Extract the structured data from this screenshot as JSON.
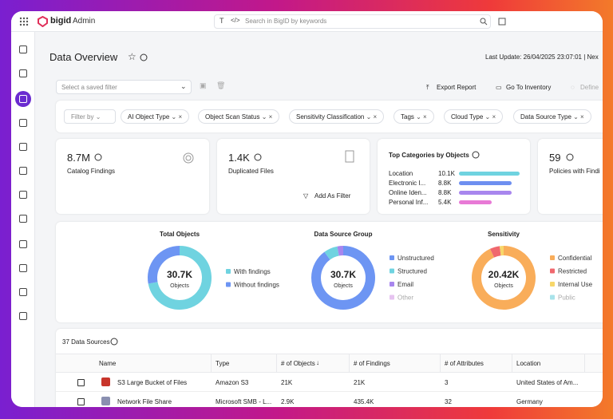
{
  "header": {
    "logo": "bigid",
    "product": "Admin",
    "search_placeholder": "Search in BigID by keywords"
  },
  "page": {
    "title": "Data Overview",
    "last_update": "Last Update: 26/04/2025 23:07:01 | Nex"
  },
  "toolbar": {
    "saved_filter_placeholder": "Select a saved filter",
    "actions": [
      "Export Report",
      "Go To Inventory",
      "Define"
    ]
  },
  "filters": {
    "label": "Filter by",
    "chips": [
      "AI Object Type",
      "Object Scan Status",
      "Sensitivity Classification",
      "Tags",
      "Cloud Type",
      "Data Source Type"
    ]
  },
  "kpis": [
    {
      "value": "8.7M",
      "label": "Catalog Findings"
    },
    {
      "value": "1.4K",
      "label": "Duplicated Files",
      "action": "Add As Filter"
    },
    {
      "value": "59",
      "label": "Policies with Findi"
    }
  ],
  "top_categories": {
    "title": "Top Categories by Objects",
    "items": [
      {
        "name": "Location",
        "label": "10.1K",
        "value": 10100,
        "color": "#6fd3e0"
      },
      {
        "name": "Electronic I...",
        "label": "8.8K",
        "value": 8800,
        "color": "#6e8ff0"
      },
      {
        "name": "Online Iden...",
        "label": "8.8K",
        "value": 8800,
        "color": "#a886ee"
      },
      {
        "name": "Personal Inf...",
        "label": "5.4K",
        "value": 5400,
        "color": "#e87ad6"
      }
    ]
  },
  "donuts": [
    {
      "title": "Total Objects",
      "total": "30.7K",
      "unit": "Objects",
      "segments": [
        {
          "name": "With findings",
          "value": 72,
          "color": "#6fd3e0"
        },
        {
          "name": "Without findings",
          "value": 28,
          "color": "#6d95f3"
        }
      ]
    },
    {
      "title": "Data Source Group",
      "total": "30.7K",
      "unit": "Objects",
      "segments": [
        {
          "name": "Unstructured",
          "value": 90,
          "color": "#6d95f3"
        },
        {
          "name": "Structured",
          "value": 7,
          "color": "#6fd3e0"
        },
        {
          "name": "Email",
          "value": 3,
          "color": "#a886ee"
        },
        {
          "name": "Other",
          "value": 0,
          "color": "#e6c3f0"
        }
      ]
    },
    {
      "title": "Sensitivity",
      "total": "20.42K",
      "unit": "Objects",
      "segments": [
        {
          "name": "Confidential",
          "value": 93,
          "color": "#f9ad5a"
        },
        {
          "name": "Restricted",
          "value": 5,
          "color": "#f0686e"
        },
        {
          "name": "Internal Use",
          "value": 2,
          "color": "#f7d76a"
        },
        {
          "name": "Public",
          "value": 0,
          "color": "#a8e3ea"
        }
      ]
    }
  ],
  "table": {
    "count": "37 Data Sources",
    "columns": [
      "Name",
      "Type",
      "# of Objects",
      "# of Findings",
      "# of Attributes",
      "Location"
    ],
    "rows": [
      [
        "S3 Large Bucket of Files",
        "Amazon S3",
        "21K",
        "21K",
        "3",
        "United States of Am..."
      ],
      [
        "Network File Share",
        "Microsoft SMB - L...",
        "2.9K",
        "435.4K",
        "32",
        "Germany"
      ]
    ]
  }
}
